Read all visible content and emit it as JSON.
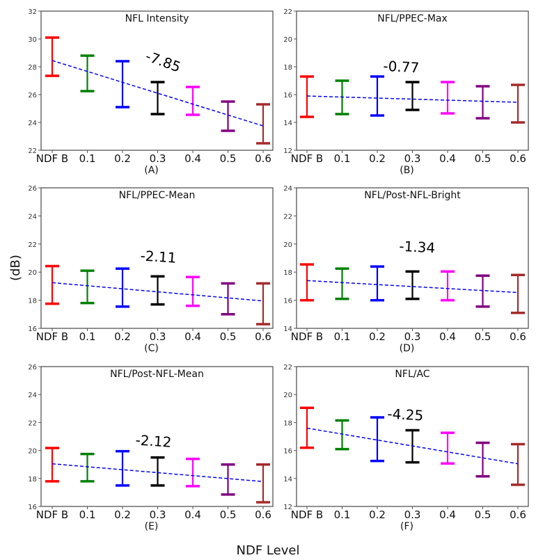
{
  "chart_data": {
    "type": "errorbar-grid",
    "shared_xlabel": "NDF Level",
    "shared_ylabel": "(dB)",
    "categories": [
      "NDF B",
      "0.1",
      "0.2",
      "0.3",
      "0.4",
      "0.5",
      "0.6"
    ],
    "category_colors": [
      "#ff0000",
      "#008000",
      "#0000ff",
      "#000000",
      "#ff00ff",
      "#800080",
      "#a52a2a"
    ],
    "trend_color": "#0000ff",
    "panels": [
      {
        "id": "A",
        "title": "NFL Intensity",
        "letter": "(A)",
        "annotation": "-7.85",
        "ylim": [
          22,
          32
        ],
        "yticks": [
          22,
          24,
          26,
          28,
          30,
          32
        ],
        "upper": [
          30.1,
          28.8,
          28.4,
          26.9,
          26.55,
          25.5,
          25.3
        ],
        "lower": [
          27.35,
          26.25,
          25.1,
          24.6,
          24.55,
          23.4,
          22.5
        ],
        "trend": [
          28.45,
          23.75
        ]
      },
      {
        "id": "B",
        "title": "NFL/PPEC-Max",
        "letter": "(B)",
        "annotation": "-0.77",
        "ylim": [
          12,
          22
        ],
        "yticks": [
          12,
          14,
          16,
          18,
          20,
          22
        ],
        "upper": [
          17.3,
          17.0,
          17.3,
          16.9,
          16.9,
          16.6,
          16.7
        ],
        "lower": [
          14.4,
          14.6,
          14.5,
          14.9,
          14.65,
          14.3,
          14.0
        ],
        "trend": [
          15.9,
          15.45
        ]
      },
      {
        "id": "C",
        "title": "NFL/PPEC-Mean",
        "letter": "(C)",
        "annotation": "-2.11",
        "ylim": [
          16,
          26
        ],
        "yticks": [
          16,
          18,
          20,
          22,
          24,
          26
        ],
        "upper": [
          20.43,
          20.1,
          20.25,
          19.7,
          19.65,
          19.2,
          19.2
        ],
        "lower": [
          17.75,
          17.8,
          17.55,
          17.7,
          17.6,
          17.0,
          16.3
        ],
        "trend": [
          19.25,
          17.95
        ]
      },
      {
        "id": "D",
        "title": "NFL/Post-NFL-Bright",
        "letter": "(D)",
        "annotation": "-1.34",
        "ylim": [
          14,
          24
        ],
        "yticks": [
          14,
          16,
          18,
          20,
          22,
          24
        ],
        "upper": [
          18.55,
          18.25,
          18.4,
          18.05,
          18.05,
          17.75,
          17.8
        ],
        "lower": [
          16.0,
          16.1,
          16.0,
          16.1,
          16.0,
          15.55,
          15.1
        ],
        "trend": [
          17.4,
          16.55
        ]
      },
      {
        "id": "E",
        "title": "NFL/Post-NFL-Mean",
        "letter": "(E)",
        "annotation": "-2.12",
        "ylim": [
          16,
          26
        ],
        "yticks": [
          16,
          18,
          20,
          22,
          24,
          26
        ],
        "upper": [
          20.18,
          19.75,
          19.95,
          19.5,
          19.4,
          19.0,
          19.0
        ],
        "lower": [
          17.8,
          17.8,
          17.5,
          17.5,
          17.45,
          16.85,
          16.3
        ],
        "trend": [
          19.05,
          17.78
        ]
      },
      {
        "id": "F",
        "title": "NFL/AC",
        "letter": "(F)",
        "annotation": "-4.25",
        "ylim": [
          12,
          22
        ],
        "yticks": [
          12,
          14,
          16,
          18,
          20,
          22
        ],
        "upper": [
          19.05,
          18.15,
          18.37,
          17.45,
          17.27,
          16.55,
          16.45
        ],
        "lower": [
          16.2,
          16.1,
          15.25,
          15.15,
          15.07,
          14.15,
          13.55
        ],
        "trend": [
          17.6,
          15.05
        ]
      }
    ]
  }
}
